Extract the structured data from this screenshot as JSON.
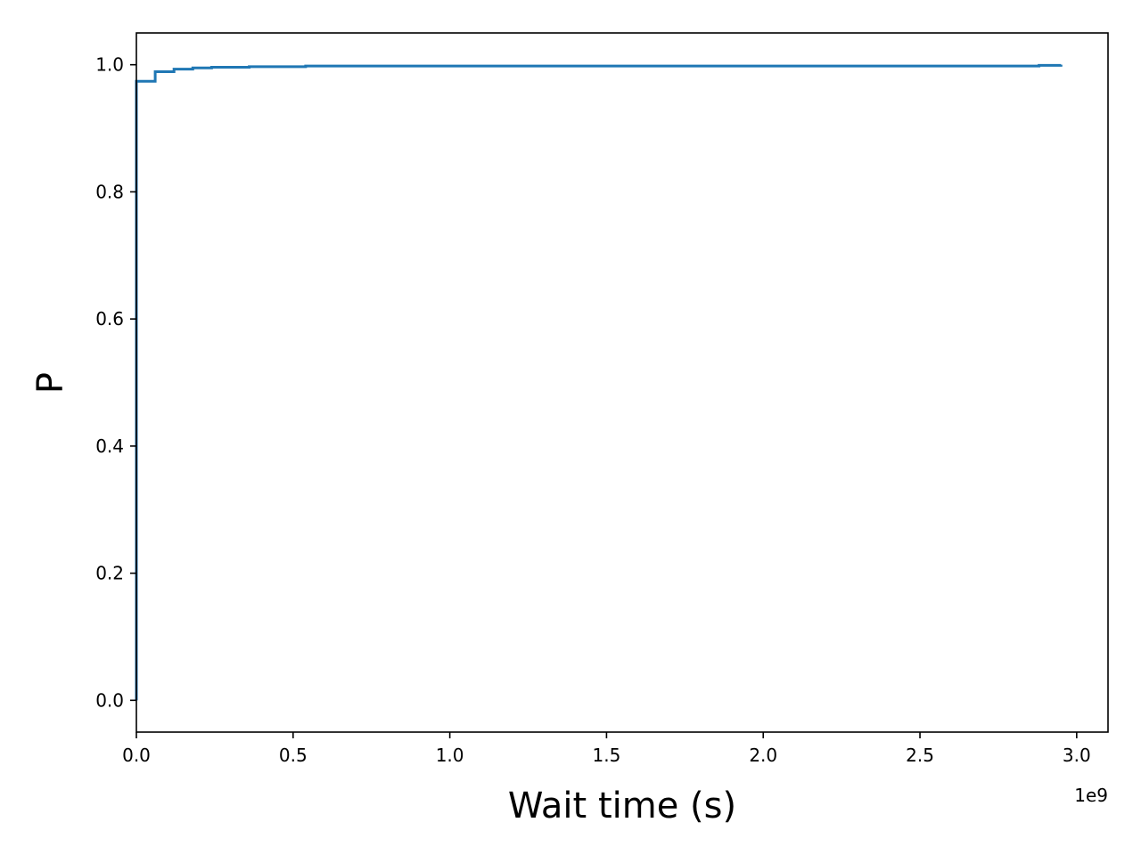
{
  "chart_data": {
    "type": "line",
    "drawstyle": "steps-post",
    "title": "",
    "xlabel": "Wait time (s)",
    "ylabel": "P",
    "x_offset_text": "1e9",
    "xlim": [
      0.0,
      3.1
    ],
    "ylim": [
      -0.05,
      1.05
    ],
    "x_ticks": [
      0.0,
      0.5,
      1.0,
      1.5,
      2.0,
      2.5,
      3.0
    ],
    "x_tick_labels": [
      "0.0",
      "0.5",
      "1.0",
      "1.5",
      "2.0",
      "2.5",
      "3.0"
    ],
    "y_ticks": [
      0.0,
      0.2,
      0.4,
      0.6,
      0.8,
      1.0
    ],
    "y_tick_labels": [
      "0.0",
      "0.2",
      "0.4",
      "0.6",
      "0.8",
      "1.0"
    ],
    "grid": false,
    "series": [
      {
        "color": "#1f77b4",
        "x": [
          0.0,
          0.0,
          0.06,
          0.12,
          0.18,
          0.24,
          0.36,
          0.54,
          2.88,
          2.95
        ],
        "y": [
          0.0,
          0.974,
          0.989,
          0.993,
          0.995,
          0.996,
          0.997,
          0.998,
          0.999,
          1.0
        ]
      }
    ]
  }
}
